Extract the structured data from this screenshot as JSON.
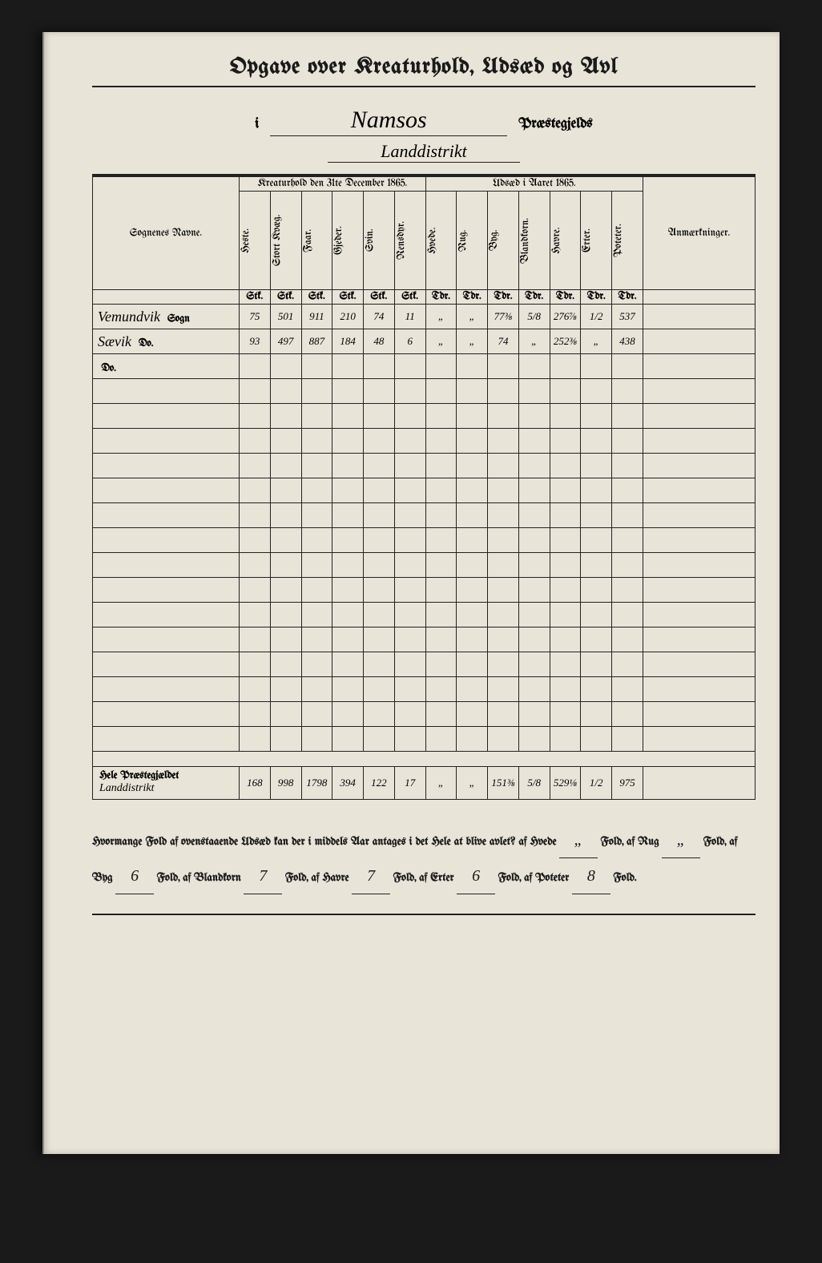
{
  "title": "Opgave over Kreaturhold, Udsæd og Avl",
  "prefix_i": "i",
  "parish": "Namsos",
  "parish_suffix": "Præstegjelds",
  "landdistrikt": "Landdistrikt",
  "headers": {
    "sognenes_navne": "Sognenes Navne.",
    "kreaturhold": "Kreaturhold den 31te December 1865.",
    "udsaed": "Udsæd i Aaret 1865.",
    "anmaerkninger": "Anmærkninger."
  },
  "col_labels": {
    "heste": "Heste.",
    "stort_kvaeg": "Stort Kvæg.",
    "faar": "Faar.",
    "gjeder": "Gjeder.",
    "svin": "Svin.",
    "rensdyr": "Rensdyr.",
    "hvede": "Hvede.",
    "rug": "Rug.",
    "byg": "Byg.",
    "blandkorn": "Blandkorn.",
    "havre": "Havre.",
    "erter": "Erter.",
    "poteter": "Poteter."
  },
  "units": {
    "stk": "Stk.",
    "tdr": "Tdr."
  },
  "rows": [
    {
      "name": "Vemundvik",
      "type": "Sogn",
      "vals": [
        "75",
        "501",
        "911",
        "210",
        "74",
        "11",
        "„",
        "„",
        "77⅜",
        "5/8",
        "276⅞",
        "1/2",
        "537"
      ]
    },
    {
      "name": "Sævik",
      "type": "Do.",
      "vals": [
        "93",
        "497",
        "887",
        "184",
        "48",
        "6",
        "„",
        "„",
        "74",
        "„",
        "252⅜",
        "„",
        "438"
      ]
    },
    {
      "name": "",
      "type": "Do.",
      "vals": [
        "",
        "",
        "",
        "",
        "",
        "",
        "",
        "",
        "",
        "",
        "",
        "",
        ""
      ]
    }
  ],
  "totals": {
    "label": "Hele Præstegjældet",
    "sublabel": "Landdistrikt",
    "vals": [
      "168",
      "998",
      "1798",
      "394",
      "122",
      "17",
      "„",
      "„",
      "151⅜",
      "5/8",
      "529⅛",
      "1/2",
      "975"
    ]
  },
  "footer": {
    "q": "Hvormange Fold af ovenstaaende Udsæd kan der i middels Aar antages i det Hele at blive avlet? af Hvede",
    "hvede": "„",
    "rug": "„",
    "byg": "6",
    "blandkorn": "7",
    "havre": "7",
    "erter": "6",
    "poteter": "8",
    "lbl_fold": "Fold,",
    "lbl_fold_end": "Fold.",
    "lbl_af_rug": "af Rug",
    "lbl_af_byg": "af Byg",
    "lbl_af_blandkorn": "af Blandkorn",
    "lbl_af_havre": "af Havre",
    "lbl_af_erter": "af Erter",
    "lbl_af_poteter": "af Poteter"
  }
}
